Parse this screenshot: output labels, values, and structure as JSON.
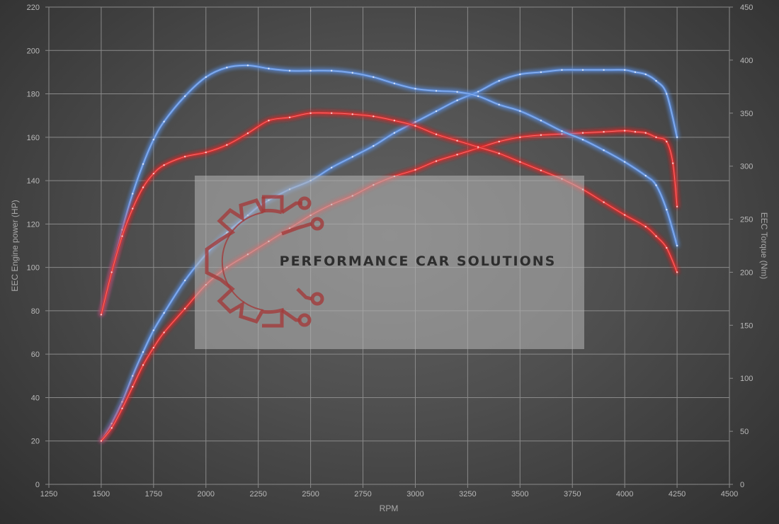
{
  "chart_data": {
    "type": "line",
    "xlabel": "RPM",
    "ylabel_left": "EEC Engine power (HP)",
    "ylabel_right": "EEC Torque (Nm)",
    "xlim": [
      1250,
      4500
    ],
    "xticks": [
      1250,
      1500,
      1750,
      2000,
      2250,
      2500,
      2750,
      3000,
      3250,
      3500,
      3750,
      4000,
      4250,
      4500
    ],
    "ylim_left": [
      0,
      220
    ],
    "yticks_left": [
      0,
      20,
      40,
      60,
      80,
      100,
      120,
      140,
      160,
      180,
      200,
      220
    ],
    "ylim_right": [
      0,
      450
    ],
    "yticks_right": [
      0,
      50,
      100,
      150,
      200,
      250,
      300,
      350,
      400,
      450
    ],
    "grid": true,
    "colors": {
      "tuned": "#5b8fe0",
      "stock": "#e02a2a",
      "grid": "#8a8a8a"
    },
    "series": [
      {
        "axis": "left",
        "color_key": "tuned",
        "x": [
          1500,
          1550,
          1600,
          1650,
          1700,
          1750,
          1800,
          1900,
          2000,
          2100,
          2200,
          2250,
          2300,
          2400,
          2500,
          2600,
          2700,
          2800,
          2900,
          3000,
          3100,
          3200,
          3300,
          3400,
          3500,
          3600,
          3700,
          3800,
          3900,
          4000,
          4050,
          4100,
          4150,
          4200,
          4250
        ],
        "y": [
          20,
          28,
          38,
          50,
          61,
          71,
          79,
          94,
          106,
          116,
          124,
          128,
          131,
          136,
          140,
          146,
          151,
          156,
          162,
          167,
          172,
          177,
          181,
          186,
          189,
          190,
          191,
          191,
          191,
          191,
          190,
          189,
          186,
          180,
          160
        ]
      },
      {
        "axis": "left",
        "color_key": "stock",
        "x": [
          1500,
          1550,
          1600,
          1650,
          1700,
          1750,
          1800,
          1900,
          2000,
          2100,
          2200,
          2300,
          2400,
          2500,
          2600,
          2700,
          2800,
          2900,
          3000,
          3100,
          3200,
          3300,
          3400,
          3500,
          3600,
          3700,
          3800,
          3900,
          4000,
          4050,
          4100,
          4150,
          4200,
          4230,
          4250
        ],
        "y": [
          20,
          26,
          35,
          45,
          55,
          63,
          70,
          81,
          92,
          100,
          106,
          112,
          118,
          124,
          129,
          133,
          138,
          142,
          145,
          149,
          152,
          155,
          158,
          160,
          161,
          161.5,
          162,
          162.5,
          163,
          162.5,
          162,
          160,
          158,
          148,
          128
        ]
      },
      {
        "axis": "right",
        "color_key": "tuned",
        "x": [
          1500,
          1550,
          1600,
          1650,
          1700,
          1750,
          1800,
          1900,
          2000,
          2100,
          2200,
          2300,
          2400,
          2500,
          2600,
          2700,
          2800,
          2900,
          3000,
          3100,
          3200,
          3300,
          3400,
          3500,
          3600,
          3700,
          3800,
          3900,
          4000,
          4100,
          4150,
          4200,
          4250
        ],
        "y": [
          160,
          200,
          240,
          274,
          302,
          325,
          342,
          366,
          384,
          393,
          395,
          392,
          390,
          390,
          390,
          388,
          384,
          378,
          373,
          371,
          370,
          366,
          358,
          352,
          343,
          333,
          325,
          315,
          304,
          291,
          282,
          259,
          225
        ]
      },
      {
        "axis": "right",
        "color_key": "stock",
        "x": [
          1500,
          1550,
          1600,
          1650,
          1700,
          1750,
          1800,
          1900,
          2000,
          2100,
          2200,
          2300,
          2400,
          2500,
          2600,
          2700,
          2800,
          2900,
          3000,
          3100,
          3200,
          3300,
          3400,
          3500,
          3600,
          3700,
          3800,
          3900,
          4000,
          4100,
          4150,
          4200,
          4250
        ],
        "y": [
          160,
          200,
          234,
          260,
          280,
          293,
          301,
          309,
          313,
          320,
          331,
          343,
          346,
          350,
          350,
          349,
          347,
          343,
          338,
          330,
          324,
          318,
          312,
          304,
          296,
          288,
          278,
          266,
          254,
          243,
          234,
          223,
          200
        ]
      }
    ]
  },
  "watermark": {
    "text": "PERFORMANCE CAR SOLUTIONS",
    "logo": "gear-circuit-logo"
  }
}
